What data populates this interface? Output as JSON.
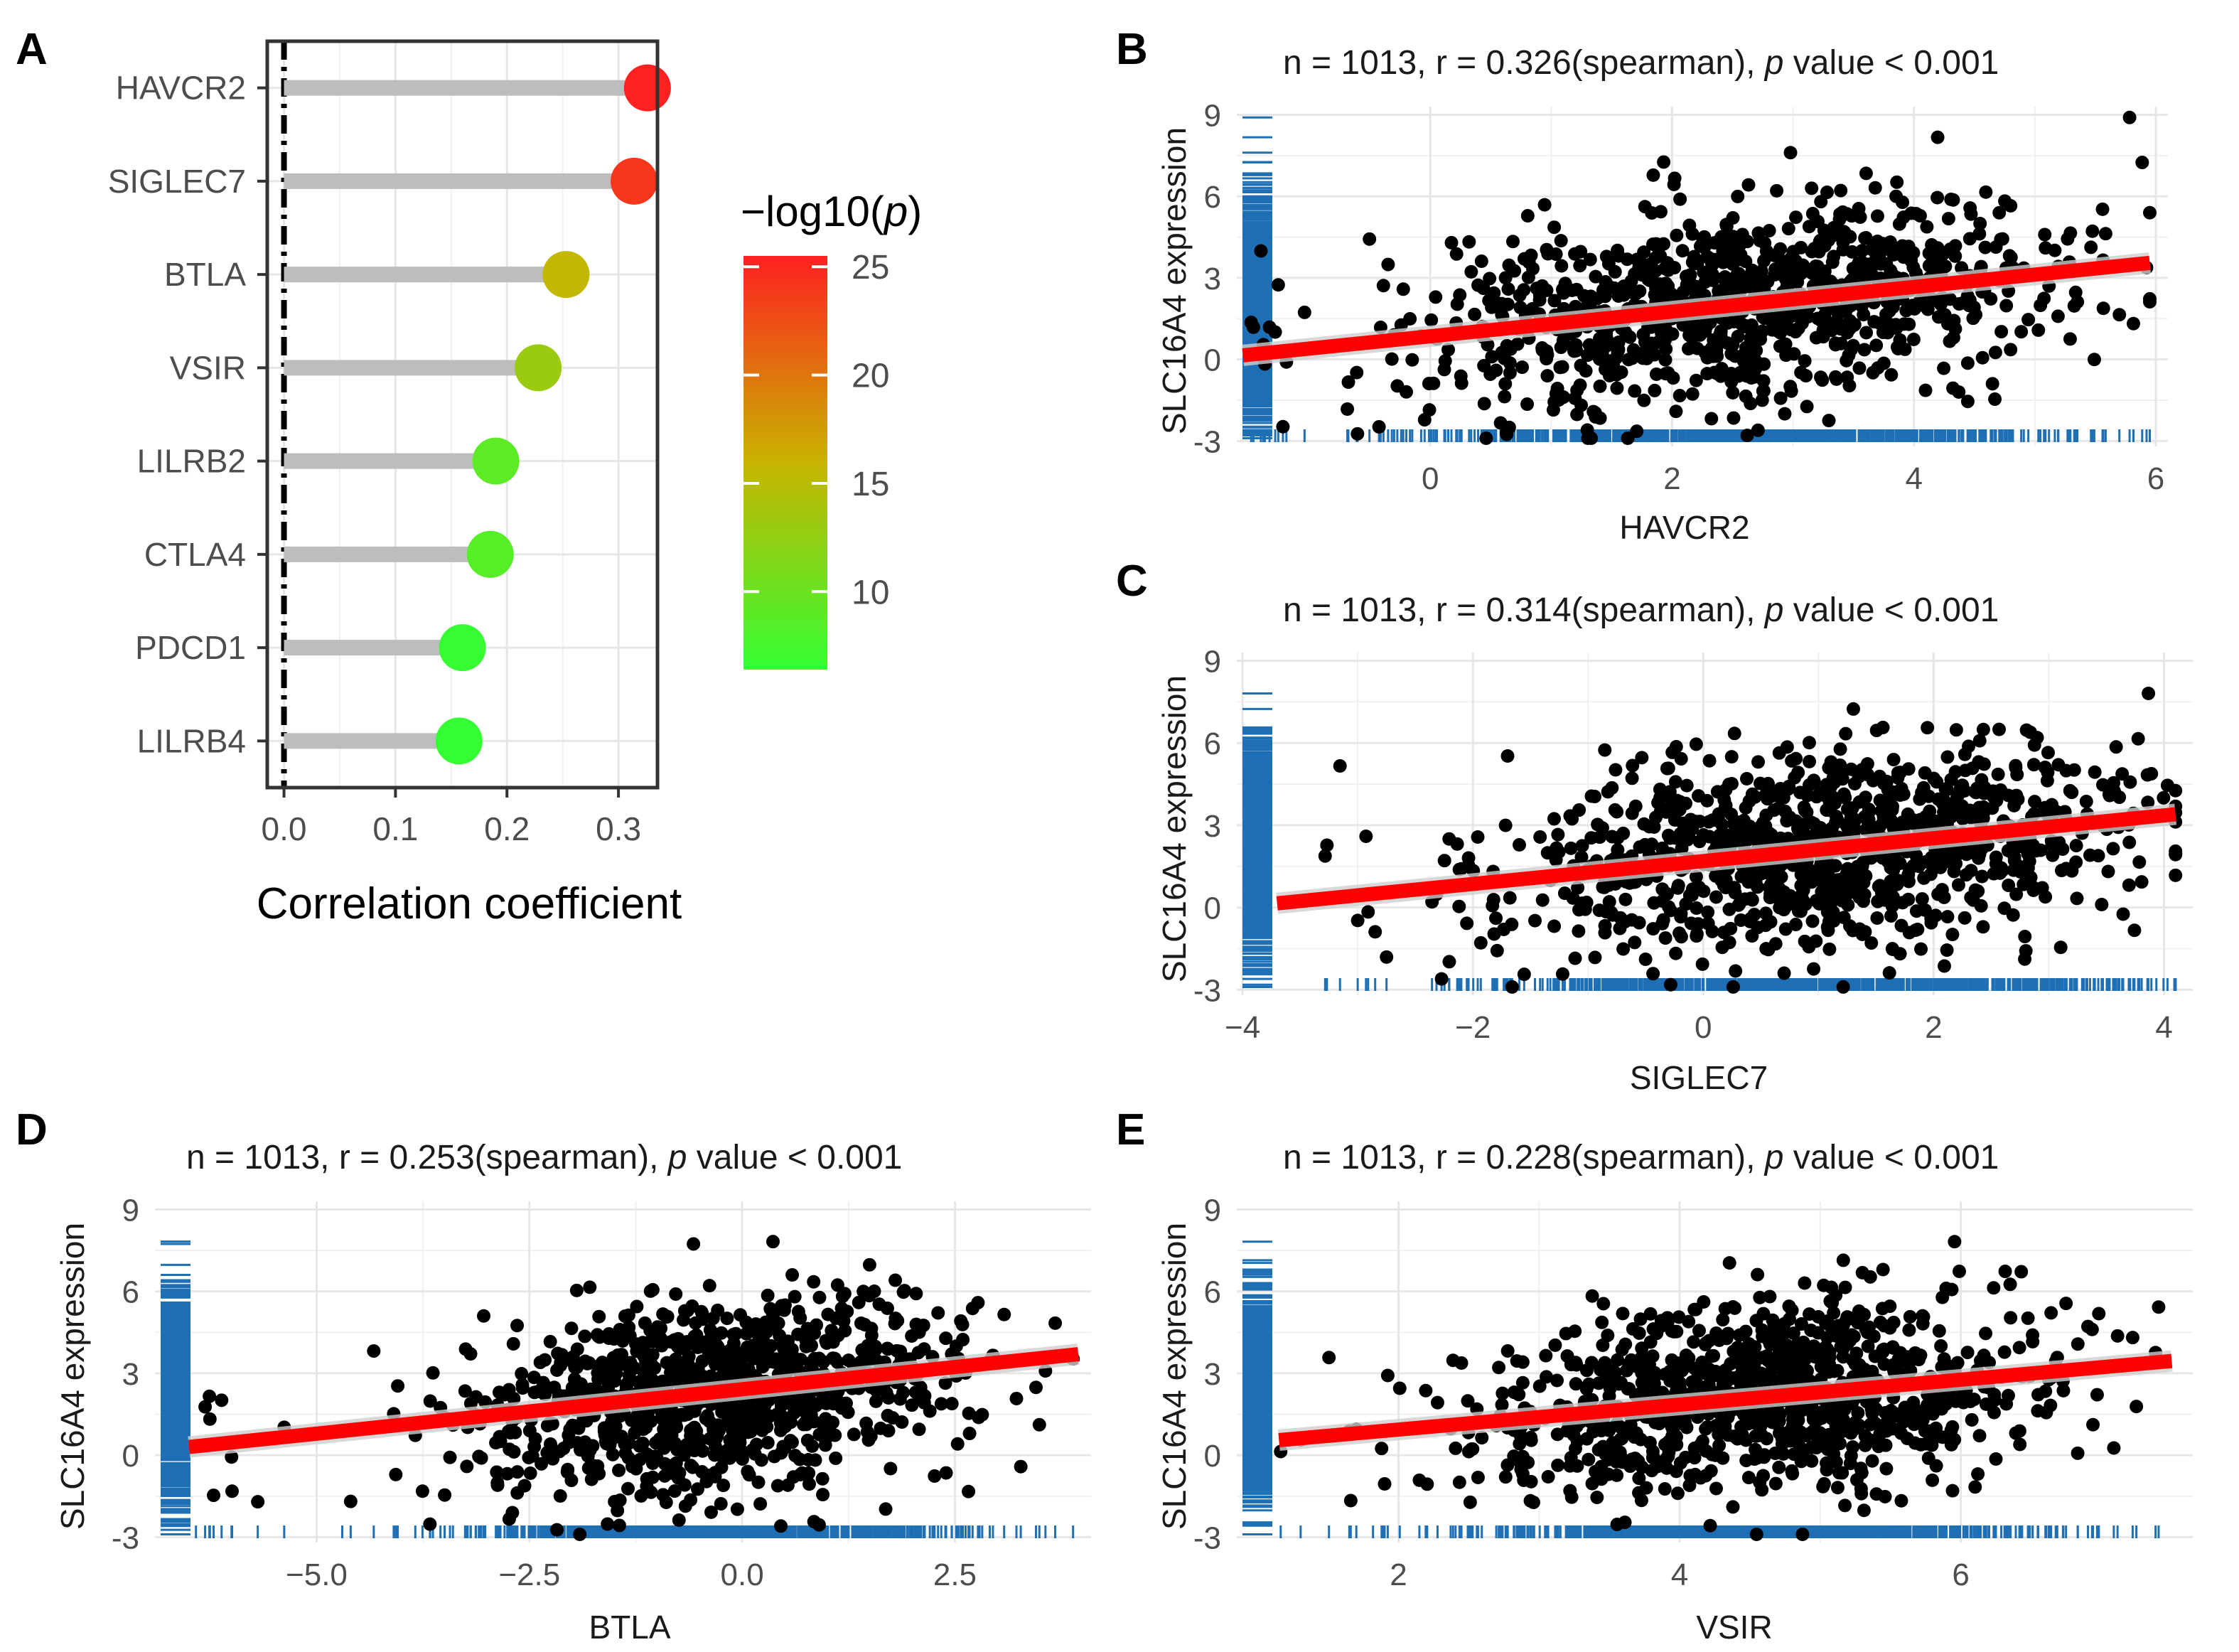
{
  "colors": {
    "point": "#000000",
    "fit_line": "#ff0000",
    "rug": "#1f6fb5",
    "stem": "#bdbdbd",
    "low": "#33ff33",
    "mid": "#c8b400",
    "high": "#ff2020"
  },
  "chart_data": [
    {
      "id": "A",
      "type": "lollipop",
      "panel_label": "A",
      "xlabel": "Correlation coefficient",
      "xlim": [
        -0.015,
        0.335
      ],
      "xticks": [
        0.0,
        0.1,
        0.2,
        0.3
      ],
      "xtick_labels": [
        "0.0",
        "0.1",
        "0.2",
        "0.3"
      ],
      "categories": [
        "HAVCR2",
        "SIGLEC7",
        "BTLA",
        "VSIR",
        "LILRB2",
        "CTLA4",
        "PDCD1",
        "LILRB4"
      ],
      "values": [
        0.326,
        0.314,
        0.253,
        0.228,
        0.19,
        0.185,
        0.16,
        0.157
      ],
      "neglog10p": [
        25.5,
        24.0,
        15.6,
        13.0,
        9.0,
        8.6,
        6.6,
        6.4
      ],
      "legend": {
        "title": "−log10(",
        "title_p": "p",
        "title_end": ")",
        "range": [
          6.4,
          25.5
        ],
        "ticks": [
          10,
          15,
          20,
          25
        ],
        "tick_labels": [
          "10",
          "15",
          "20",
          "25"
        ]
      }
    },
    {
      "id": "B",
      "type": "scatter",
      "panel_label": "B",
      "title_pre": "n = 1013, r = 0.326(spearman), ",
      "title_p": "p",
      "title_post": " value < 0.001",
      "xlabel": "HAVCR2",
      "ylabel": "SLC16A4 expression",
      "xlim": [
        -1.6,
        6.1
      ],
      "ylim": [
        -3.2,
        9.3
      ],
      "xticks": [
        0,
        2,
        4,
        6
      ],
      "xtick_labels": [
        "0",
        "2",
        "4",
        "6"
      ],
      "yticks": [
        -3,
        0,
        3,
        6,
        9
      ],
      "ytick_labels": [
        "-3",
        "0",
        "3",
        "6",
        "9"
      ],
      "fit": {
        "x": [
          -1.55,
          5.95
        ],
        "y": [
          0.15,
          3.55
        ]
      },
      "n": 1013,
      "x_dist": {
        "mean": 2.6,
        "sd": 1.25,
        "min": -1.55,
        "max": 5.95
      },
      "seed": 11
    },
    {
      "id": "C",
      "type": "scatter",
      "panel_label": "C",
      "title_pre": "n = 1013, r = 0.314(spearman), ",
      "title_p": "p",
      "title_post": " value < 0.001",
      "xlabel": "SIGLEC7",
      "ylabel": "SLC16A4 expression",
      "xlim": [
        -4.05,
        4.25
      ],
      "ylim": [
        -3.2,
        9.3
      ],
      "xticks": [
        -4,
        -2,
        0,
        2,
        4
      ],
      "xtick_labels": [
        "−4",
        "−2",
        "0",
        "2",
        "4"
      ],
      "yticks": [
        -3,
        0,
        3,
        6,
        9
      ],
      "ytick_labels": [
        "-3",
        "0",
        "3",
        "6",
        "9"
      ],
      "fit": {
        "x": [
          -3.7,
          4.1
        ],
        "y": [
          0.15,
          3.4
        ]
      },
      "n": 1013,
      "x_dist": {
        "mean": 1.0,
        "sd": 1.35,
        "min": -3.7,
        "max": 4.1
      },
      "seed": 23
    },
    {
      "id": "D",
      "type": "scatter",
      "panel_label": "D",
      "title_pre": "n = 1013, r = 0.253(spearman), ",
      "title_p": "p",
      "title_post": " value < 0.001",
      "xlabel": "BTLA",
      "ylabel": "SLC16A4 expression",
      "xlim": [
        -6.9,
        4.1
      ],
      "ylim": [
        -3.2,
        9.3
      ],
      "xticks": [
        -5.0,
        -2.5,
        0.0,
        2.5
      ],
      "xtick_labels": [
        "−5.0",
        "−2.5",
        "0.0",
        "2.5"
      ],
      "yticks": [
        -3,
        0,
        3,
        6,
        9
      ],
      "ytick_labels": [
        "-3",
        "0",
        "3",
        "6",
        "9"
      ],
      "fit": {
        "x": [
          -6.5,
          3.95
        ],
        "y": [
          0.3,
          3.7
        ]
      },
      "n": 1013,
      "x_dist": {
        "mean": -0.3,
        "sd": 1.35,
        "min": -6.5,
        "max": 3.95
      },
      "seed": 37
    },
    {
      "id": "E",
      "type": "scatter",
      "panel_label": "E",
      "title_pre": "n = 1013, r = 0.228(spearman), ",
      "title_p": "p",
      "title_post": " value < 0.001",
      "xlabel": "VSIR",
      "ylabel": "SLC16A4 expression",
      "xlim": [
        0.85,
        7.65
      ],
      "ylim": [
        -3.2,
        9.3
      ],
      "xticks": [
        2,
        4,
        6
      ],
      "xtick_labels": [
        "2",
        "4",
        "6"
      ],
      "yticks": [
        -3,
        0,
        3,
        6,
        9
      ],
      "ytick_labels": [
        "-3",
        "0",
        "3",
        "6",
        "9"
      ],
      "fit": {
        "x": [
          1.15,
          7.5
        ],
        "y": [
          0.55,
          3.45
        ]
      },
      "n": 1013,
      "x_dist": {
        "mean": 4.6,
        "sd": 0.95,
        "min": 1.15,
        "max": 7.5
      },
      "seed": 53
    }
  ]
}
